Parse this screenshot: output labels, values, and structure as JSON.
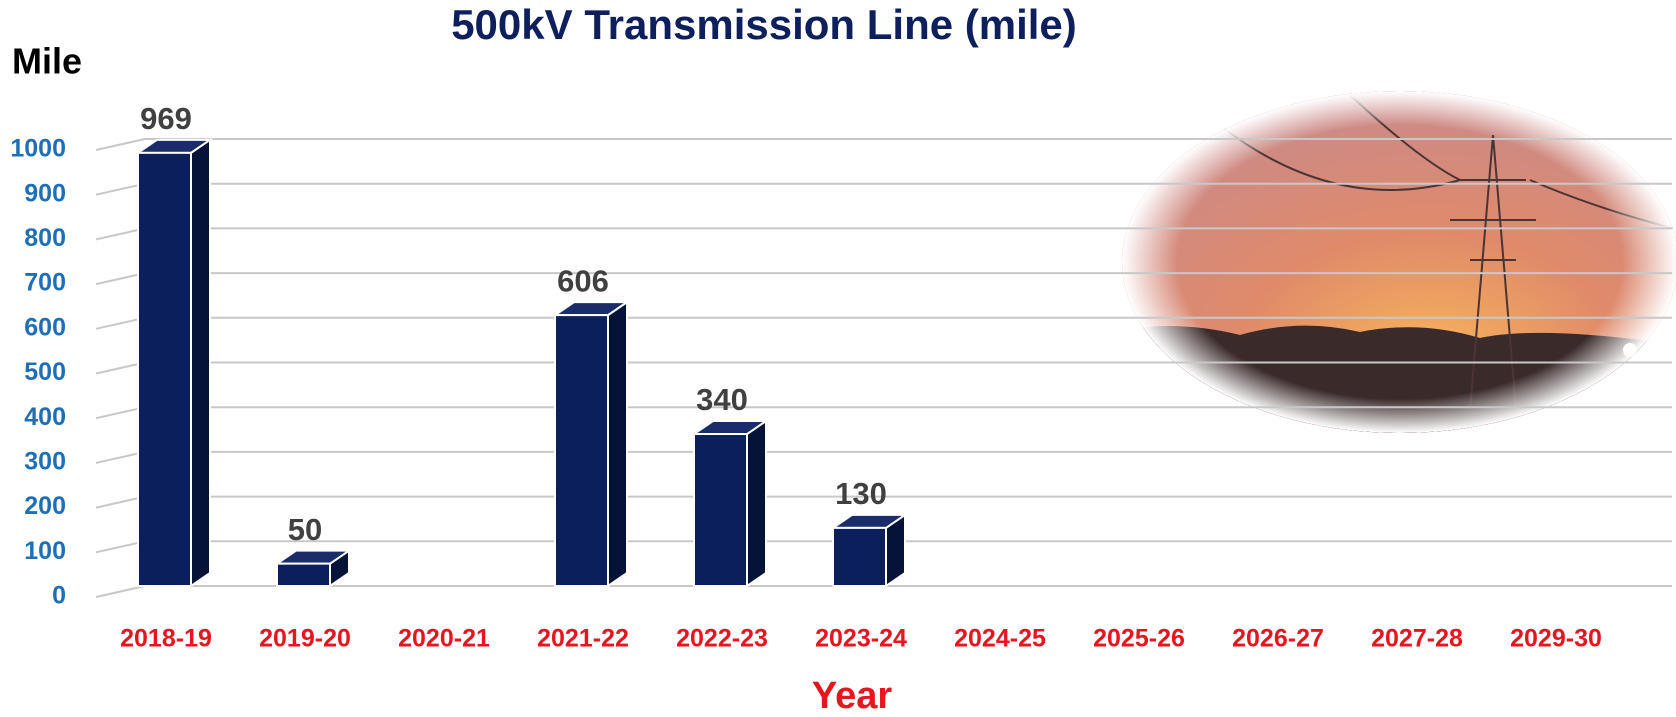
{
  "chart_data": {
    "type": "bar",
    "title": "500kV Transmission Line (mile)",
    "y_axis_label": "Mile",
    "x_axis_label": "Year",
    "categories": [
      "2018-19",
      "2019-20",
      "2020-21",
      "2021-22",
      "2022-23",
      "2023-24",
      "2024-25",
      "2025-26",
      "2026-27",
      "2027-28",
      "2029-30"
    ],
    "values": [
      969,
      50,
      null,
      606,
      340,
      130,
      null,
      null,
      null,
      null,
      null
    ],
    "color": "#0b1f5c",
    "ylim": [
      0,
      1000
    ],
    "yticks": [
      0,
      100,
      200,
      300,
      400,
      500,
      600,
      700,
      800,
      900,
      1000
    ],
    "grid": true
  }
}
